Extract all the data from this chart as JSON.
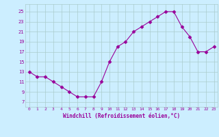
{
  "x": [
    0,
    1,
    2,
    3,
    4,
    5,
    6,
    7,
    8,
    9,
    10,
    11,
    12,
    13,
    14,
    15,
    16,
    17,
    18,
    19,
    20,
    21,
    22,
    23
  ],
  "y": [
    13,
    12,
    12,
    11,
    10,
    9,
    8,
    8,
    8,
    11,
    15,
    18,
    19,
    21,
    22,
    23,
    24,
    25,
    25,
    22,
    20,
    17,
    17,
    18
  ],
  "line_color": "#990099",
  "marker": "D",
  "marker_size": 2.5,
  "bg_color": "#cceeff",
  "grid_color": "#aacccc",
  "xlabel": "Windchill (Refroidissement éolien,°C)",
  "xlabel_color": "#990099",
  "tick_color": "#990099",
  "yticks": [
    7,
    9,
    11,
    13,
    15,
    17,
    19,
    21,
    23,
    25
  ],
  "xticks": [
    0,
    1,
    2,
    3,
    4,
    5,
    6,
    7,
    8,
    9,
    10,
    11,
    12,
    13,
    14,
    15,
    16,
    17,
    18,
    19,
    20,
    21,
    22,
    23
  ],
  "ylim": [
    6.0,
    26.5
  ],
  "xlim": [
    -0.5,
    23.5
  ]
}
